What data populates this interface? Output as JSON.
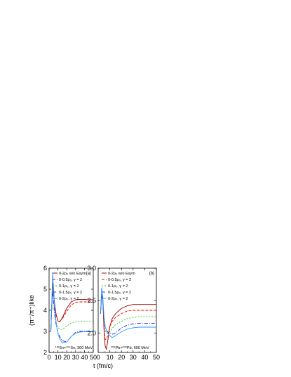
{
  "chart_data": [
    {
      "type": "line",
      "panel_label": "(a)",
      "reaction_label": "¹³²Sn+¹²⁴Sn, 300 MeV",
      "ylabel": "(π⁻/π⁺)like",
      "xlabel": "t (fm/c)",
      "xlim": [
        0,
        50
      ],
      "ylim": [
        2,
        6
      ],
      "xticks": [
        "0",
        "10",
        "20",
        "30",
        "40",
        "50"
      ],
      "yticks": [
        "2",
        "3",
        "4",
        "5",
        "6"
      ],
      "legend_position": "top-right",
      "series": [
        {
          "name": "0-2ρ₀ w/o Esym",
          "color": "#8b0000",
          "dash": "",
          "x": [
            2,
            3,
            4,
            5,
            6,
            8,
            10,
            12,
            15,
            20,
            25,
            30,
            35,
            40,
            45,
            50
          ],
          "y": [
            3.0,
            4.2,
            5.3,
            5.0,
            4.4,
            3.8,
            3.5,
            3.45,
            3.65,
            4.1,
            4.4,
            4.5,
            4.52,
            4.52,
            4.5,
            4.5
          ]
        },
        {
          "name": "0-0.5ρ₀, γ = 2",
          "color": "#ff0000",
          "dash": "4,2",
          "x": [
            2,
            3,
            4,
            5,
            6,
            8,
            10,
            12,
            15,
            20,
            25,
            30,
            35,
            40,
            45,
            50
          ],
          "y": [
            3.0,
            4.2,
            5.2,
            4.9,
            4.3,
            3.75,
            3.5,
            3.48,
            3.6,
            3.95,
            4.25,
            4.38,
            4.4,
            4.4,
            4.4,
            4.4
          ]
        },
        {
          "name": "0-1ρ₀, γ = 2",
          "color": "#22cc22",
          "dash": "2,2",
          "x": [
            2,
            3,
            4,
            5,
            6,
            8,
            10,
            12,
            15,
            20,
            25,
            30,
            35,
            40,
            45,
            50
          ],
          "y": [
            3.0,
            4.1,
            5.0,
            4.6,
            4.0,
            3.45,
            3.2,
            3.1,
            3.1,
            3.25,
            3.4,
            3.45,
            3.48,
            3.48,
            3.48,
            3.48
          ]
        },
        {
          "name": "0-1.5ρ₀, γ = 2",
          "color": "#1a1aff",
          "dash": "5,2,1,2",
          "x": [
            2,
            3,
            4,
            5,
            6,
            8,
            10,
            12,
            15,
            20,
            25,
            30,
            35,
            40,
            45,
            50
          ],
          "y": [
            3.0,
            4.1,
            4.9,
            4.5,
            3.9,
            3.3,
            2.95,
            2.75,
            2.55,
            2.5,
            2.75,
            2.95,
            3.0,
            3.0,
            3.0,
            3.0
          ]
        },
        {
          "name": "0-2ρ₀, γ = 2",
          "color": "#2299ff",
          "dash": "",
          "x": [
            2,
            3,
            4,
            5,
            6,
            8,
            10,
            12,
            15,
            20,
            25,
            30,
            35,
            40,
            45,
            50
          ],
          "y": [
            3.0,
            4.3,
            5.8,
            5.1,
            4.3,
            3.4,
            2.9,
            2.65,
            2.45,
            2.5,
            2.75,
            2.92,
            2.97,
            2.98,
            2.98,
            2.98
          ]
        }
      ]
    },
    {
      "type": "line",
      "panel_label": "(b)",
      "reaction_label": "²⁰⁸Pb+²⁰⁸Pb, 600 MeV",
      "xlabel": "t (fm/c)",
      "xlim": [
        0,
        50
      ],
      "ylim": [
        1.7,
        3.0
      ],
      "xticks": [
        "0",
        "10",
        "20",
        "30",
        "40",
        "50"
      ],
      "yticks": [
        "2.0",
        "2.5",
        "3.0"
      ],
      "legend_position": "top-right",
      "series": [
        {
          "name": "0-2ρ₀ w/o Esym",
          "color": "#8b0000",
          "dash": "",
          "x": [
            2,
            3,
            4,
            5,
            6,
            7,
            8,
            10,
            12,
            15,
            20,
            25,
            30,
            35,
            40,
            45,
            50
          ],
          "y": [
            2.3,
            2.6,
            2.5,
            2.05,
            1.8,
            1.75,
            1.85,
            2.1,
            2.22,
            2.3,
            2.38,
            2.42,
            2.44,
            2.44,
            2.44,
            2.44,
            2.44
          ]
        },
        {
          "name": "0-0.5ρ₀, γ = 2",
          "color": "#ff0000",
          "dash": "4,2",
          "x": [
            2,
            3,
            4,
            5,
            6,
            7,
            8,
            10,
            12,
            15,
            20,
            25,
            30,
            35,
            40,
            45,
            50
          ],
          "y": [
            2.3,
            2.6,
            2.5,
            2.1,
            1.9,
            1.9,
            1.95,
            2.1,
            2.18,
            2.24,
            2.3,
            2.34,
            2.35,
            2.35,
            2.35,
            2.35,
            2.35
          ]
        },
        {
          "name": "0-1ρ₀, γ = 2",
          "color": "#22cc22",
          "dash": "2,2",
          "x": [
            2,
            3,
            4,
            5,
            6,
            7,
            8,
            10,
            12,
            15,
            20,
            25,
            30,
            35,
            40,
            45,
            50
          ],
          "y": [
            2.3,
            2.6,
            2.5,
            2.2,
            2.05,
            2.0,
            2.0,
            2.02,
            2.07,
            2.13,
            2.18,
            2.22,
            2.24,
            2.25,
            2.25,
            2.25,
            2.25
          ]
        },
        {
          "name": "0-1.5ρ₀, γ = 2",
          "color": "#1a1aff",
          "dash": "5,2,1,2",
          "x": [
            2,
            3,
            4,
            5,
            6,
            7,
            8,
            10,
            12,
            15,
            20,
            25,
            30,
            35,
            40,
            45,
            50
          ],
          "y": [
            2.3,
            2.6,
            2.5,
            2.2,
            2.1,
            2.05,
            2.02,
            2.0,
            1.98,
            2.0,
            2.08,
            2.12,
            2.14,
            2.15,
            2.15,
            2.15,
            2.15
          ]
        },
        {
          "name": "0-2ρ₀, γ = 2",
          "color": "#2299ff",
          "dash": "",
          "x": [
            2,
            3,
            4,
            5,
            6,
            7,
            8,
            10,
            12,
            15,
            20,
            25,
            30,
            35,
            40,
            45,
            50
          ],
          "y": [
            2.3,
            2.7,
            2.55,
            2.25,
            2.1,
            2.05,
            2.0,
            1.96,
            1.93,
            1.96,
            2.02,
            2.06,
            2.08,
            2.09,
            2.09,
            2.09,
            2.09
          ]
        }
      ]
    }
  ]
}
